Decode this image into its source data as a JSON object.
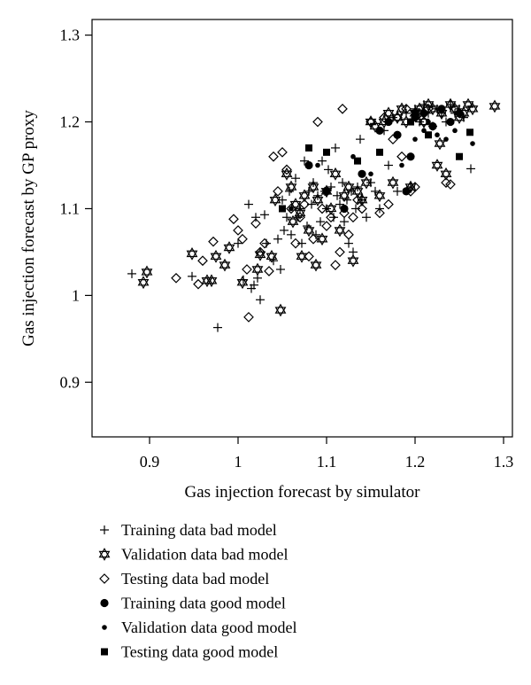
{
  "chart_data": {
    "type": "scatter",
    "title": "",
    "xlabel": "Gas injection forecast by simulator",
    "ylabel": "Gas injection forecast by GP proxy",
    "xlim": [
      0.835,
      1.31
    ],
    "ylim": [
      0.837,
      1.318
    ],
    "xticks": [
      0.9,
      1.0,
      1.1,
      1.2,
      1.3
    ],
    "xtick_labels": [
      "0.9",
      "1",
      "1.1",
      "1.2",
      "1.3"
    ],
    "yticks": [
      0.9,
      1.0,
      1.1,
      1.2,
      1.3
    ],
    "ytick_labels": [
      "0.9",
      "1",
      "1.1",
      "1.2",
      "1.3"
    ],
    "grid": false,
    "legend_position": "bottom-left",
    "series": [
      {
        "name": "Training data bad model",
        "marker": "plus",
        "points": [
          [
            0.88,
            1.025
          ],
          [
            0.948,
            1.022
          ],
          [
            0.977,
            0.963
          ],
          [
            1.0,
            1.06
          ],
          [
            1.006,
            1.018
          ],
          [
            1.012,
            1.105
          ],
          [
            1.015,
            1.008
          ],
          [
            1.018,
            1.012
          ],
          [
            1.02,
            1.09
          ],
          [
            1.022,
            1.02
          ],
          [
            1.025,
            0.995
          ],
          [
            1.03,
            1.093
          ],
          [
            1.032,
            1.06
          ],
          [
            1.04,
            1.04
          ],
          [
            1.045,
            1.065
          ],
          [
            1.048,
            1.03
          ],
          [
            1.05,
            1.11
          ],
          [
            1.052,
            1.075
          ],
          [
            1.055,
            1.09
          ],
          [
            1.058,
            1.12
          ],
          [
            1.06,
            1.07
          ],
          [
            1.065,
            1.135
          ],
          [
            1.068,
            1.09
          ],
          [
            1.07,
            1.1
          ],
          [
            1.072,
            1.06
          ],
          [
            1.075,
            1.155
          ],
          [
            1.078,
            1.08
          ],
          [
            1.08,
            1.12
          ],
          [
            1.083,
            1.105
          ],
          [
            1.085,
            1.13
          ],
          [
            1.088,
            1.07
          ],
          [
            1.09,
            1.115
          ],
          [
            1.093,
            1.085
          ],
          [
            1.095,
            1.155
          ],
          [
            1.098,
            1.12
          ],
          [
            1.1,
            1.1
          ],
          [
            1.102,
            1.145
          ],
          [
            1.105,
            1.125
          ],
          [
            1.108,
            1.09
          ],
          [
            1.11,
            1.17
          ],
          [
            1.112,
            1.115
          ],
          [
            1.115,
            1.105
          ],
          [
            1.118,
            1.13
          ],
          [
            1.12,
            1.085
          ],
          [
            1.123,
            1.11
          ],
          [
            1.125,
            1.06
          ],
          [
            1.128,
            1.12
          ],
          [
            1.13,
            1.05
          ],
          [
            1.133,
            1.1
          ],
          [
            1.135,
            1.125
          ],
          [
            1.138,
            1.18
          ],
          [
            1.14,
            1.11
          ],
          [
            1.145,
            1.09
          ],
          [
            1.15,
            1.13
          ],
          [
            1.155,
            1.12
          ],
          [
            1.16,
            1.1
          ],
          [
            1.165,
            1.19
          ],
          [
            1.17,
            1.15
          ],
          [
            1.175,
            1.205
          ],
          [
            1.18,
            1.12
          ],
          [
            1.19,
            1.21
          ],
          [
            1.195,
            1.125
          ],
          [
            1.2,
            1.215
          ],
          [
            1.205,
            1.2
          ],
          [
            1.21,
            1.22
          ],
          [
            1.215,
            1.21
          ],
          [
            1.22,
            1.195
          ],
          [
            1.225,
            1.215
          ],
          [
            1.23,
            1.21
          ],
          [
            1.235,
            1.2
          ],
          [
            1.24,
            1.22
          ],
          [
            1.245,
            1.21
          ],
          [
            1.25,
            1.215
          ],
          [
            1.255,
            1.205
          ],
          [
            1.263,
            1.146
          ]
        ]
      },
      {
        "name": "Validation data bad model",
        "marker": "star-of-david",
        "points": [
          [
            0.893,
            1.015
          ],
          [
            0.897,
            1.027
          ],
          [
            0.948,
            1.048
          ],
          [
            0.965,
            1.017
          ],
          [
            0.97,
            1.017
          ],
          [
            0.975,
            1.045
          ],
          [
            0.985,
            1.035
          ],
          [
            0.99,
            1.055
          ],
          [
            1.005,
            1.015
          ],
          [
            1.022,
            1.03
          ],
          [
            1.025,
            1.047
          ],
          [
            1.038,
            1.045
          ],
          [
            1.042,
            1.11
          ],
          [
            1.048,
            0.983
          ],
          [
            1.055,
            1.14
          ],
          [
            1.06,
            1.125
          ],
          [
            1.062,
            1.085
          ],
          [
            1.065,
            1.105
          ],
          [
            1.07,
            1.095
          ],
          [
            1.072,
            1.045
          ],
          [
            1.075,
            1.115
          ],
          [
            1.08,
            1.075
          ],
          [
            1.085,
            1.125
          ],
          [
            1.088,
            1.035
          ],
          [
            1.09,
            1.11
          ],
          [
            1.095,
            1.065
          ],
          [
            1.1,
            1.12
          ],
          [
            1.105,
            1.1
          ],
          [
            1.11,
            1.14
          ],
          [
            1.115,
            1.075
          ],
          [
            1.12,
            1.115
          ],
          [
            1.125,
            1.125
          ],
          [
            1.13,
            1.04
          ],
          [
            1.135,
            1.12
          ],
          [
            1.14,
            1.11
          ],
          [
            1.145,
            1.13
          ],
          [
            1.15,
            1.2
          ],
          [
            1.155,
            1.195
          ],
          [
            1.16,
            1.115
          ],
          [
            1.165,
            1.2
          ],
          [
            1.17,
            1.21
          ],
          [
            1.175,
            1.13
          ],
          [
            1.18,
            1.205
          ],
          [
            1.185,
            1.215
          ],
          [
            1.19,
            1.2
          ],
          [
            1.195,
            1.125
          ],
          [
            1.2,
            1.21
          ],
          [
            1.205,
            1.215
          ],
          [
            1.21,
            1.2
          ],
          [
            1.215,
            1.22
          ],
          [
            1.22,
            1.215
          ],
          [
            1.225,
            1.15
          ],
          [
            1.228,
            1.175
          ],
          [
            1.23,
            1.21
          ],
          [
            1.235,
            1.14
          ],
          [
            1.24,
            1.22
          ],
          [
            1.245,
            1.215
          ],
          [
            1.25,
            1.205
          ],
          [
            1.255,
            1.21
          ],
          [
            1.26,
            1.22
          ],
          [
            1.265,
            1.215
          ],
          [
            1.29,
            1.218
          ]
        ]
      },
      {
        "name": "Testing data bad model",
        "marker": "diamond",
        "points": [
          [
            0.93,
            1.02
          ],
          [
            0.955,
            1.013
          ],
          [
            0.96,
            1.04
          ],
          [
            0.972,
            1.062
          ],
          [
            0.995,
            1.088
          ],
          [
            1.0,
            1.075
          ],
          [
            1.005,
            1.065
          ],
          [
            1.01,
            1.03
          ],
          [
            1.012,
            0.975
          ],
          [
            1.02,
            1.083
          ],
          [
            1.025,
            1.05
          ],
          [
            1.03,
            1.06
          ],
          [
            1.035,
            1.028
          ],
          [
            1.04,
            1.16
          ],
          [
            1.045,
            1.12
          ],
          [
            1.05,
            1.165
          ],
          [
            1.055,
            1.145
          ],
          [
            1.06,
            1.1
          ],
          [
            1.065,
            1.06
          ],
          [
            1.07,
            1.09
          ],
          [
            1.075,
            1.105
          ],
          [
            1.08,
            1.045
          ],
          [
            1.085,
            1.065
          ],
          [
            1.09,
            1.2
          ],
          [
            1.095,
            1.1
          ],
          [
            1.1,
            1.08
          ],
          [
            1.105,
            1.09
          ],
          [
            1.11,
            1.035
          ],
          [
            1.115,
            1.05
          ],
          [
            1.118,
            1.215
          ],
          [
            1.12,
            1.095
          ],
          [
            1.125,
            1.07
          ],
          [
            1.13,
            1.09
          ],
          [
            1.135,
            1.11
          ],
          [
            1.14,
            1.1
          ],
          [
            1.15,
            1.2
          ],
          [
            1.16,
            1.095
          ],
          [
            1.165,
            1.205
          ],
          [
            1.17,
            1.105
          ],
          [
            1.175,
            1.18
          ],
          [
            1.18,
            1.205
          ],
          [
            1.185,
            1.16
          ],
          [
            1.19,
            1.215
          ],
          [
            1.195,
            1.12
          ],
          [
            1.2,
            1.125
          ],
          [
            1.205,
            1.21
          ],
          [
            1.21,
            1.2
          ],
          [
            1.215,
            1.215
          ],
          [
            1.235,
            1.13
          ],
          [
            1.24,
            1.128
          ],
          [
            1.25,
            1.21
          ]
        ]
      },
      {
        "name": "Training data good model",
        "marker": "circle-filled",
        "points": [
          [
            1.08,
            1.15
          ],
          [
            1.1,
            1.12
          ],
          [
            1.12,
            1.1
          ],
          [
            1.14,
            1.14
          ],
          [
            1.16,
            1.19
          ],
          [
            1.17,
            1.2
          ],
          [
            1.18,
            1.185
          ],
          [
            1.19,
            1.12
          ],
          [
            1.195,
            1.16
          ],
          [
            1.2,
            1.205
          ],
          [
            1.21,
            1.21
          ],
          [
            1.22,
            1.195
          ],
          [
            1.23,
            1.215
          ],
          [
            1.24,
            1.2
          ],
          [
            1.25,
            1.21
          ]
        ]
      },
      {
        "name": "Validation data good model",
        "marker": "circle-small",
        "points": [
          [
            1.06,
            1.1
          ],
          [
            1.09,
            1.15
          ],
          [
            1.13,
            1.16
          ],
          [
            1.15,
            1.14
          ],
          [
            1.185,
            1.15
          ],
          [
            1.2,
            1.18
          ],
          [
            1.21,
            1.19
          ],
          [
            1.215,
            1.2
          ],
          [
            1.225,
            1.185
          ],
          [
            1.235,
            1.18
          ],
          [
            1.245,
            1.19
          ],
          [
            1.265,
            1.175
          ]
        ]
      },
      {
        "name": "Testing data good model",
        "marker": "square-filled",
        "points": [
          [
            1.05,
            1.1
          ],
          [
            1.08,
            1.17
          ],
          [
            1.1,
            1.165
          ],
          [
            1.135,
            1.155
          ],
          [
            1.16,
            1.165
          ],
          [
            1.195,
            1.2
          ],
          [
            1.2,
            1.21
          ],
          [
            1.215,
            1.185
          ],
          [
            1.25,
            1.16
          ],
          [
            1.262,
            1.188
          ]
        ]
      }
    ]
  }
}
